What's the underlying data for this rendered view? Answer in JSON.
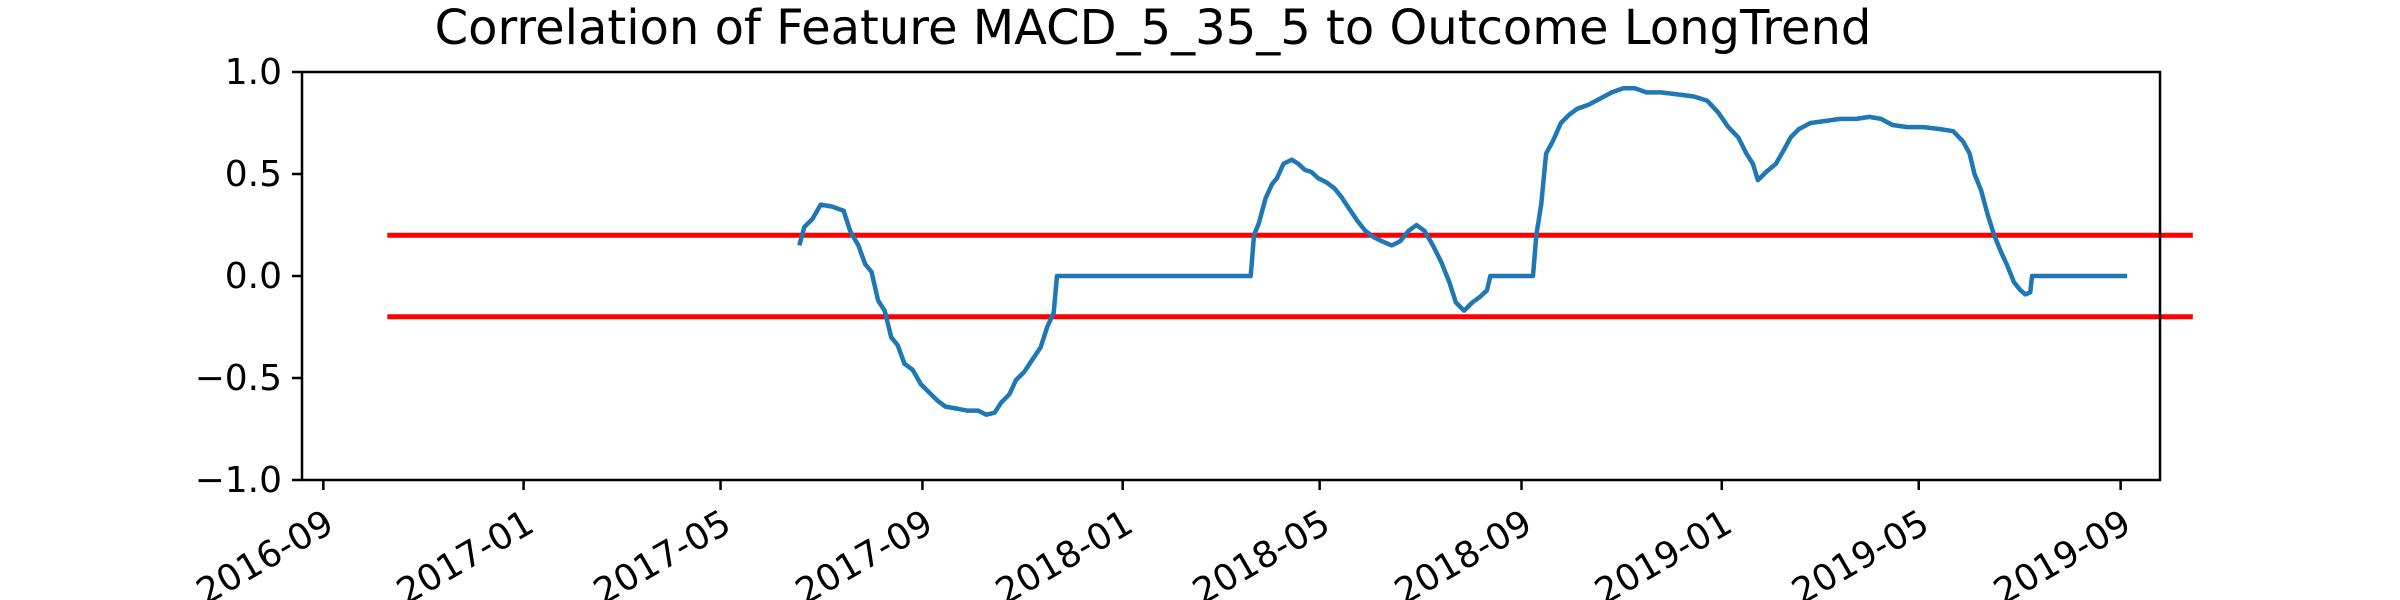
{
  "chart_data": {
    "type": "line",
    "title": "Correlation of Feature MACD_5_35_5 to Outcome LongTrend",
    "xlabel": "",
    "ylabel": "",
    "xlim": [
      "2016-08-19",
      "2019-09-25"
    ],
    "ylim": [
      -1.0,
      1.0
    ],
    "grid": false,
    "y_ticks": [
      {
        "value": -1.0,
        "label": "−1.0"
      },
      {
        "value": -0.5,
        "label": "−0.5"
      },
      {
        "value": 0.0,
        "label": "0.0"
      },
      {
        "value": 0.5,
        "label": "0.5"
      },
      {
        "value": 1.0,
        "label": "1.0"
      }
    ],
    "x_ticks": [
      {
        "value": "2016-09-01",
        "label": "2016-09"
      },
      {
        "value": "2017-01-01",
        "label": "2017-01"
      },
      {
        "value": "2017-05-01",
        "label": "2017-05"
      },
      {
        "value": "2017-09-01",
        "label": "2017-09"
      },
      {
        "value": "2018-01-01",
        "label": "2018-01"
      },
      {
        "value": "2018-05-01",
        "label": "2018-05"
      },
      {
        "value": "2018-09-01",
        "label": "2018-09"
      },
      {
        "value": "2019-01-01",
        "label": "2019-01"
      },
      {
        "value": "2019-05-01",
        "label": "2019-05"
      },
      {
        "value": "2019-09-01",
        "label": "2019-09"
      }
    ],
    "series": [
      {
        "color": "#1f77b4",
        "points": [
          [
            "2017-06-18",
            0.15
          ],
          [
            "2017-06-21",
            0.24
          ],
          [
            "2017-06-26",
            0.28
          ],
          [
            "2017-07-01",
            0.35
          ],
          [
            "2017-07-08",
            0.34
          ],
          [
            "2017-07-15",
            0.32
          ],
          [
            "2017-07-19",
            0.22
          ],
          [
            "2017-07-24",
            0.15
          ],
          [
            "2017-07-28",
            0.06
          ],
          [
            "2017-08-01",
            0.02
          ],
          [
            "2017-08-05",
            -0.12
          ],
          [
            "2017-08-09",
            -0.17
          ],
          [
            "2017-08-13",
            -0.3
          ],
          [
            "2017-08-17",
            -0.34
          ],
          [
            "2017-08-21",
            -0.43
          ],
          [
            "2017-08-26",
            -0.46
          ],
          [
            "2017-08-31",
            -0.53
          ],
          [
            "2017-09-05",
            -0.57
          ],
          [
            "2017-09-10",
            -0.61
          ],
          [
            "2017-09-15",
            -0.64
          ],
          [
            "2017-09-22",
            -0.65
          ],
          [
            "2017-09-28",
            -0.66
          ],
          [
            "2017-10-05",
            -0.66
          ],
          [
            "2017-10-10",
            -0.68
          ],
          [
            "2017-10-15",
            -0.67
          ],
          [
            "2017-10-19",
            -0.62
          ],
          [
            "2017-10-24",
            -0.58
          ],
          [
            "2017-10-28",
            -0.51
          ],
          [
            "2017-11-02",
            -0.47
          ],
          [
            "2017-11-07",
            -0.41
          ],
          [
            "2017-11-12",
            -0.35
          ],
          [
            "2017-11-16",
            -0.25
          ],
          [
            "2017-11-20",
            -0.18
          ],
          [
            "2017-11-22",
            0.0
          ],
          [
            "2018-03-20",
            0.0
          ],
          [
            "2018-03-22",
            0.2
          ],
          [
            "2018-03-25",
            0.26
          ],
          [
            "2018-03-29",
            0.38
          ],
          [
            "2018-04-02",
            0.45
          ],
          [
            "2018-04-05",
            0.48
          ],
          [
            "2018-04-09",
            0.55
          ],
          [
            "2018-04-14",
            0.57
          ],
          [
            "2018-04-18",
            0.55
          ],
          [
            "2018-04-22",
            0.52
          ],
          [
            "2018-04-26",
            0.51
          ],
          [
            "2018-04-30",
            0.48
          ],
          [
            "2018-05-05",
            0.46
          ],
          [
            "2018-05-10",
            0.43
          ],
          [
            "2018-05-14",
            0.39
          ],
          [
            "2018-05-19",
            0.33
          ],
          [
            "2018-05-24",
            0.27
          ],
          [
            "2018-05-29",
            0.22
          ],
          [
            "2018-06-03",
            0.19
          ],
          [
            "2018-06-08",
            0.17
          ],
          [
            "2018-06-14",
            0.15
          ],
          [
            "2018-06-19",
            0.17
          ],
          [
            "2018-06-24",
            0.22
          ],
          [
            "2018-06-29",
            0.25
          ],
          [
            "2018-07-04",
            0.22
          ],
          [
            "2018-07-09",
            0.15
          ],
          [
            "2018-07-14",
            0.07
          ],
          [
            "2018-07-19",
            -0.03
          ],
          [
            "2018-07-23",
            -0.13
          ],
          [
            "2018-07-28",
            -0.17
          ],
          [
            "2018-08-02",
            -0.13
          ],
          [
            "2018-08-07",
            -0.1
          ],
          [
            "2018-08-11",
            -0.07
          ],
          [
            "2018-08-13",
            0.0
          ],
          [
            "2018-09-08",
            0.0
          ],
          [
            "2018-09-10",
            0.2
          ],
          [
            "2018-09-13",
            0.35
          ],
          [
            "2018-09-16",
            0.6
          ],
          [
            "2018-09-20",
            0.66
          ],
          [
            "2018-09-25",
            0.75
          ],
          [
            "2018-09-30",
            0.79
          ],
          [
            "2018-10-05",
            0.82
          ],
          [
            "2018-10-12",
            0.84
          ],
          [
            "2018-10-19",
            0.87
          ],
          [
            "2018-10-26",
            0.9
          ],
          [
            "2018-11-02",
            0.92
          ],
          [
            "2018-11-09",
            0.92
          ],
          [
            "2018-11-16",
            0.9
          ],
          [
            "2018-11-25",
            0.9
          ],
          [
            "2018-12-05",
            0.89
          ],
          [
            "2018-12-15",
            0.88
          ],
          [
            "2018-12-23",
            0.86
          ],
          [
            "2018-12-30",
            0.8
          ],
          [
            "2019-01-05",
            0.73
          ],
          [
            "2019-01-11",
            0.68
          ],
          [
            "2019-01-16",
            0.6
          ],
          [
            "2019-01-20",
            0.55
          ],
          [
            "2019-01-23",
            0.47
          ],
          [
            "2019-01-28",
            0.51
          ],
          [
            "2019-02-03",
            0.55
          ],
          [
            "2019-02-08",
            0.62
          ],
          [
            "2019-02-12",
            0.68
          ],
          [
            "2019-02-17",
            0.72
          ],
          [
            "2019-02-24",
            0.75
          ],
          [
            "2019-03-05",
            0.76
          ],
          [
            "2019-03-14",
            0.77
          ],
          [
            "2019-03-24",
            0.77
          ],
          [
            "2019-04-01",
            0.78
          ],
          [
            "2019-04-08",
            0.77
          ],
          [
            "2019-04-15",
            0.74
          ],
          [
            "2019-04-24",
            0.73
          ],
          [
            "2019-05-04",
            0.73
          ],
          [
            "2019-05-14",
            0.72
          ],
          [
            "2019-05-22",
            0.71
          ],
          [
            "2019-05-28",
            0.66
          ],
          [
            "2019-06-01",
            0.6
          ],
          [
            "2019-06-04",
            0.5
          ],
          [
            "2019-06-08",
            0.42
          ],
          [
            "2019-06-12",
            0.3
          ],
          [
            "2019-06-16",
            0.2
          ],
          [
            "2019-06-20",
            0.12
          ],
          [
            "2019-06-24",
            0.05
          ],
          [
            "2019-06-28",
            -0.03
          ],
          [
            "2019-07-02",
            -0.07
          ],
          [
            "2019-07-05",
            -0.09
          ],
          [
            "2019-07-08",
            -0.08
          ],
          [
            "2019-07-09",
            0.0
          ],
          [
            "2019-09-05",
            0.0
          ]
        ]
      }
    ],
    "reference_lines": [
      {
        "y": 0.2,
        "x_start": "2016-10-10",
        "x_end": "2019-10-15",
        "color": "#ff0000"
      },
      {
        "y": -0.2,
        "x_start": "2016-10-10",
        "x_end": "2019-10-15",
        "color": "#ff0000"
      }
    ]
  }
}
